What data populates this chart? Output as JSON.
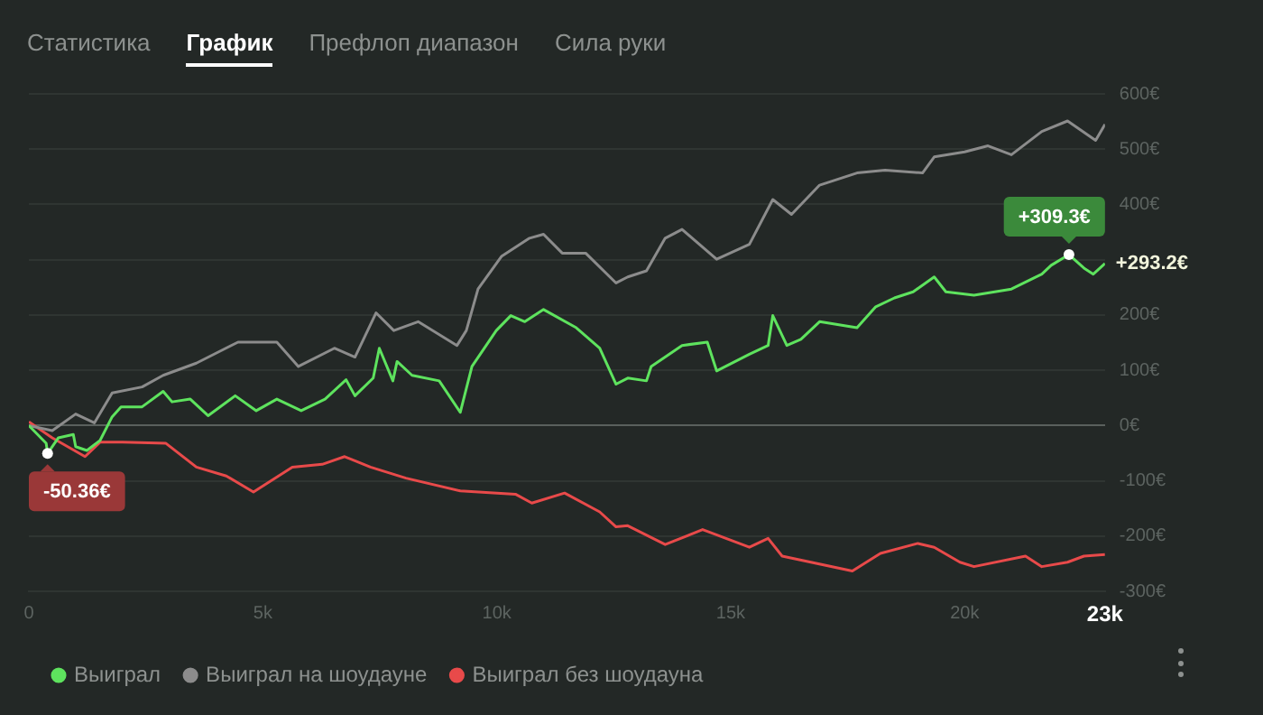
{
  "chart_data": {
    "type": "line",
    "xlim": [
      0,
      23000
    ],
    "xticks": [
      0,
      {
        "value": 5000,
        "label": "5k"
      },
      {
        "value": 10000,
        "label": "10k"
      },
      {
        "value": 15000,
        "label": "15k"
      },
      {
        "value": 20000,
        "label": "20k"
      },
      {
        "value": 23000,
        "label": "23k"
      }
    ],
    "ylim": [
      -300,
      600
    ],
    "yticks": [
      {
        "value": -300,
        "label": "-300€"
      },
      {
        "value": -200,
        "label": "-200€"
      },
      {
        "value": -100,
        "label": "-100€"
      },
      {
        "value": 0,
        "label": "0€"
      },
      {
        "value": 100,
        "label": "100€"
      },
      {
        "value": 200,
        "label": "200€"
      },
      {
        "value": 300,
        "label": null
      },
      {
        "value": 400,
        "label": "400€"
      },
      {
        "value": 500,
        "label": "500€"
      },
      {
        "value": 600,
        "label": "600€"
      }
    ],
    "grid": "y",
    "legend": "bottom",
    "marker": "none",
    "line_style": "solid",
    "series": [
      {
        "name": "Выиграл",
        "color": "#5ee35e",
        "x": [
          0,
          370,
          400,
          630,
          950,
          1000,
          1240,
          1520,
          1780,
          1970,
          2420,
          2870,
          3060,
          3450,
          3830,
          4410,
          4860,
          5300,
          5820,
          6330,
          6780,
          6970,
          7360,
          7490,
          7780,
          7870,
          8190,
          8770,
          9220,
          9470,
          9990,
          10300,
          10600,
          11000,
          11700,
          12200,
          12550,
          12800,
          13200,
          13300,
          13960,
          14500,
          14700,
          15400,
          15800,
          15900,
          16200,
          16500,
          16900,
          17700,
          18100,
          18500,
          18900,
          19350,
          19600,
          20200,
          21000,
          21650,
          21850,
          22230,
          22550,
          22750,
          23000
        ],
        "values": [
          0,
          -32,
          -50.36,
          -22,
          -16,
          -38,
          -45,
          -27,
          16,
          34,
          34,
          62,
          43,
          48,
          18,
          54,
          27,
          48,
          27,
          48,
          83,
          54,
          86,
          140,
          81,
          116,
          91,
          81,
          24,
          107,
          172,
          199,
          188,
          210,
          177,
          140,
          75,
          86,
          81,
          107,
          145,
          151,
          99,
          129,
          145,
          199,
          145,
          156,
          188,
          177,
          215,
          231,
          242,
          269,
          242,
          236,
          247,
          274,
          290,
          309.3,
          285,
          274,
          293.2
        ]
      },
      {
        "name": "Выиграл на шоудауне",
        "color": "#8c8c8c",
        "x": [
          0,
          500,
          1000,
          1400,
          1780,
          2420,
          2870,
          3580,
          4470,
          5300,
          5760,
          6530,
          6970,
          7420,
          7800,
          8320,
          9150,
          9350,
          9600,
          10100,
          10700,
          11000,
          11400,
          11900,
          12550,
          12800,
          13200,
          13600,
          13960,
          14700,
          15400,
          15900,
          16300,
          16900,
          17700,
          18300,
          19100,
          19350,
          20000,
          20500,
          21000,
          21650,
          22200,
          22800,
          23000
        ],
        "values": [
          0,
          -9,
          21,
          5,
          59,
          70,
          91,
          113,
          151,
          151,
          107,
          140,
          124,
          204,
          172,
          188,
          145,
          172,
          247,
          306,
          339,
          346,
          312,
          312,
          258,
          269,
          280,
          339,
          355,
          301,
          328,
          409,
          382,
          435,
          457,
          462,
          457,
          486,
          495,
          506,
          490,
          532,
          551,
          516,
          545
        ]
      },
      {
        "name": "Выиграл без шоудауна",
        "color": "#e84a4a",
        "x": [
          0,
          500,
          1200,
          1520,
          2000,
          2930,
          3580,
          4220,
          4800,
          5630,
          6270,
          6750,
          7300,
          8060,
          9220,
          10400,
          10750,
          11450,
          12200,
          12550,
          12800,
          13600,
          14400,
          15400,
          15800,
          16100,
          17600,
          18200,
          19000,
          19350,
          19900,
          20200,
          21300,
          21650,
          22200,
          22550,
          23000
        ],
        "values": [
          7,
          -22,
          -56,
          -30,
          -30,
          -32,
          -75,
          -91,
          -120,
          -75,
          -70,
          -56,
          -75,
          -95,
          -118,
          -124,
          -140,
          -122,
          -156,
          -183,
          -181,
          -215,
          -188,
          -220,
          -204,
          -236,
          -263,
          -231,
          -213,
          -220,
          -247,
          -255,
          -236,
          -255,
          -247,
          -236,
          -233
        ]
      }
    ],
    "annotations": [
      "Статистика",
      "График",
      "Префлоп диапазон",
      "Сила руки",
      {
        "text": "-50.36€",
        "x": 400,
        "y": -50.36
      },
      {
        "text": "+309.3€",
        "x": 22230,
        "y": 309.3
      },
      {
        "text": "+293.2€",
        "x": 23000,
        "y": 293.2
      }
    ]
  }
}
